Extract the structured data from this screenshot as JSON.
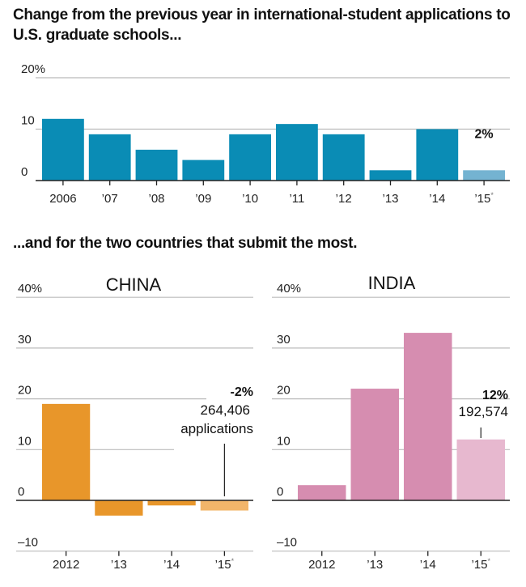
{
  "titles": {
    "main": "Change from the previous year in international-student applications to U.S. graduate schools...",
    "sub": "...and for the two countries that submit the most."
  },
  "colors": {
    "top_bar": "#0a8cb5",
    "top_bar_estimate": "#74b3d1",
    "china_bar": "#e8962a",
    "china_bar_estimate": "#f2b56a",
    "india_bar": "#d68db0",
    "india_bar_estimate": "#e7b8cf",
    "grid": "#bbbbbb",
    "axis": "#222222"
  },
  "chart_data": [
    {
      "type": "bar",
      "title": "Change from the previous year in international-student applications to U.S. graduate schools...",
      "categories": [
        "2006",
        "’07",
        "’08",
        "’09",
        "’10",
        "’11",
        "’12",
        "’13",
        "’14",
        "’15*"
      ],
      "values": [
        12,
        9,
        6,
        4,
        9,
        11,
        9,
        2,
        10,
        2
      ],
      "estimate_index": 9,
      "yticks": [
        "0",
        "10",
        "20%"
      ],
      "ytick_values": [
        0,
        10,
        20
      ],
      "ylim": [
        0,
        20
      ],
      "annotation": {
        "text": "2%",
        "category": "’15*"
      },
      "grid": true
    },
    {
      "type": "bar",
      "title": "CHINA",
      "categories": [
        "2012",
        "’13",
        "’14",
        "’15*"
      ],
      "values": [
        19,
        -3,
        -1,
        -2
      ],
      "estimate_index": 3,
      "yticks": [
        "–10",
        "0",
        "10",
        "20",
        "30",
        "40%"
      ],
      "ytick_values": [
        -10,
        0,
        10,
        20,
        30,
        40
      ],
      "ylim": [
        -10,
        40
      ],
      "annotation": {
        "lines": [
          "-2%",
          "264,406",
          "applications"
        ],
        "category": "’15*"
      },
      "grid": true
    },
    {
      "type": "bar",
      "title": "INDIA",
      "categories": [
        "2012",
        "’13",
        "’14",
        "’15*"
      ],
      "values": [
        3,
        22,
        33,
        12
      ],
      "estimate_index": 3,
      "yticks": [
        "–10",
        "0",
        "10",
        "20",
        "30",
        "40%"
      ],
      "ytick_values": [
        -10,
        0,
        10,
        20,
        30,
        40
      ],
      "ylim": [
        -10,
        40
      ],
      "annotation": {
        "lines": [
          "12%",
          "192,574"
        ],
        "category": "’15*"
      },
      "grid": true
    }
  ]
}
